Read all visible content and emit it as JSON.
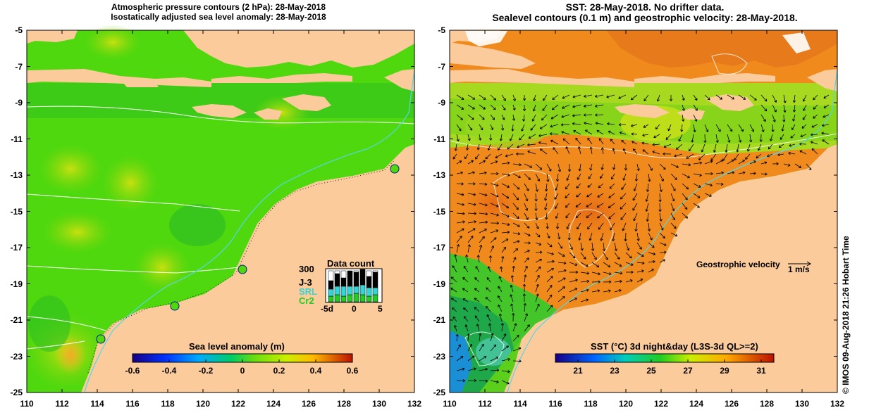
{
  "left_panel": {
    "title_line1": "Atmospheric pressure contours (2 hPa): 28-May-2018",
    "title_line2": "Isostatically adjusted sea level anomaly: 28-May-2018",
    "colorbar_label": "Sea level anomaly (m)",
    "colorbar_ticks": [
      "-0.6",
      "-0.4",
      "-0.2",
      "0",
      "0.2",
      "0.4",
      "0.6"
    ],
    "data_count": {
      "title": "Data count",
      "ymax_label": "300",
      "legend": [
        "J-3",
        "SRL",
        "Cr2"
      ],
      "xticks": [
        "-5d",
        "0",
        "5"
      ]
    }
  },
  "right_panel": {
    "title_line1": "SST: 28-May-2018. No drifter data.",
    "title_line2": "Sealevel contours (0.1 m) and geostrophic velocity: 28-May-2018.",
    "colorbar_label": "SST (°C) 3d night&day (L3S-3d QL>=2)",
    "colorbar_ticks": [
      "21",
      "23",
      "25",
      "27",
      "29",
      "31"
    ],
    "velocity_label": "Geostrophic velocity",
    "velocity_scale": "1 m/s"
  },
  "axes": {
    "y_ticks": [
      "-5",
      "-7",
      "-9",
      "-11",
      "-13",
      "-15",
      "-17",
      "-19",
      "-21",
      "-23",
      "-25"
    ],
    "x_ticks": [
      "110",
      "112",
      "114",
      "116",
      "118",
      "120",
      "122",
      "124",
      "126",
      "128",
      "130",
      "132"
    ]
  },
  "credit": "© IMOS 09-Aug-2018 21:26 Hobart Time",
  "colors": {
    "land": "#fbcb9b",
    "sla_green": "#4fd80e",
    "sst_orange": "#f08a1c",
    "data_j3": "#000000",
    "data_srl": "#33d6d6",
    "data_cr2": "#22cc22"
  }
}
